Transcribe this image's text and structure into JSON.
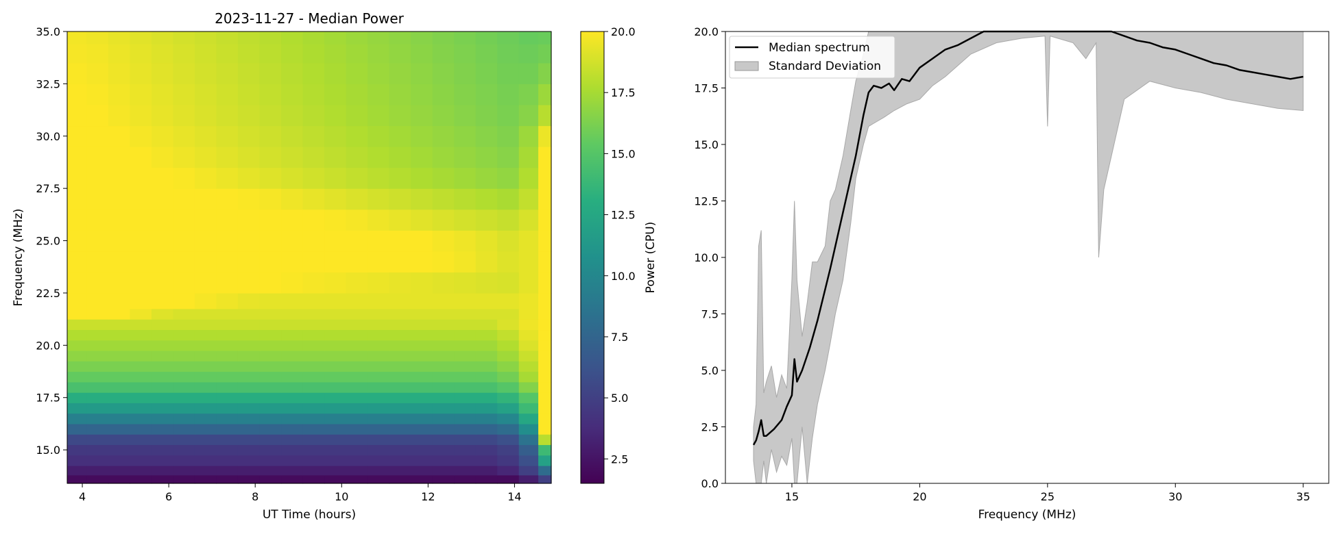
{
  "chart_data": [
    {
      "type": "heatmap",
      "title": "2023-11-27 - Median Power",
      "xlabel": "UT Time (hours)",
      "ylabel": "Frequency (MHz)",
      "xlim": [
        3.65,
        14.85
      ],
      "ylim": [
        13.4,
        35.0
      ],
      "xticks": [
        4,
        6,
        8,
        10,
        12,
        14
      ],
      "xtick_labels": [
        "4",
        "6",
        "8",
        "10",
        "12",
        "14"
      ],
      "yticks": [
        15.0,
        17.5,
        20.0,
        22.5,
        25.0,
        27.5,
        30.0,
        32.5,
        35.0
      ],
      "ytick_labels": [
        "15.0",
        "17.5",
        "20.0",
        "22.5",
        "25.0",
        "27.5",
        "30.0",
        "32.5",
        "35.0"
      ],
      "colormap": "viridis",
      "grid": false,
      "colorbar": {
        "label": "Power (CPU)",
        "vmin": 1.5,
        "vmax": 20.0,
        "ticks": [
          2.5,
          5.0,
          7.5,
          10.0,
          12.5,
          15.0,
          17.5,
          20.0
        ],
        "tick_labels": [
          "2.5",
          "5.0",
          "7.5",
          "10.0",
          "12.5",
          "15.0",
          "17.5",
          "20.0"
        ]
      },
      "time_columns": [
        3.85,
        4.35,
        4.85,
        5.35,
        5.85,
        6.35,
        6.85,
        7.35,
        7.85,
        8.35,
        8.85,
        9.35,
        9.85,
        10.35,
        10.85,
        11.35,
        11.85,
        12.35,
        12.85,
        13.35,
        13.85,
        14.35,
        14.75
      ],
      "freq_rows": [
        13.6,
        14.0,
        14.5,
        15.0,
        15.5,
        16.0,
        16.5,
        17.0,
        17.5,
        18.0,
        18.5,
        19.0,
        19.5,
        20.0,
        20.5,
        21.0,
        21.5,
        22.0,
        23.0,
        24.0,
        25.0,
        26.0,
        27.0,
        28.0,
        29.0,
        30.0,
        31.0,
        32.0,
        33.0,
        34.0,
        34.8
      ],
      "values": [
        [
          2.0,
          2.0,
          2.0,
          2.0,
          2.0,
          2.0,
          2.0,
          2.0,
          2.0,
          2.0,
          2.0,
          2.0,
          2.0,
          2.0,
          2.0,
          2.0,
          2.0,
          2.0,
          2.0,
          2.0,
          2.0,
          3.0,
          5.0
        ],
        [
          3.0,
          3.0,
          3.0,
          3.0,
          3.0,
          3.0,
          3.0,
          3.0,
          3.0,
          3.0,
          3.0,
          3.0,
          3.0,
          3.0,
          3.0,
          3.0,
          3.0,
          3.0,
          3.0,
          3.0,
          3.5,
          5.0,
          8.0
        ],
        [
          4.0,
          4.0,
          4.0,
          4.0,
          4.0,
          4.0,
          4.0,
          4.0,
          4.0,
          4.0,
          4.0,
          4.0,
          4.0,
          4.0,
          4.0,
          4.0,
          4.0,
          4.0,
          4.0,
          4.0,
          4.5,
          6.0,
          12.0
        ],
        [
          4.5,
          4.5,
          4.5,
          4.5,
          4.5,
          4.5,
          4.5,
          4.5,
          4.5,
          4.5,
          4.5,
          4.5,
          4.5,
          4.5,
          4.5,
          4.5,
          4.5,
          4.5,
          4.5,
          4.5,
          5.0,
          7.0,
          14.0
        ],
        [
          5.5,
          5.5,
          5.5,
          5.5,
          5.5,
          5.5,
          5.5,
          5.5,
          5.5,
          5.5,
          5.5,
          5.5,
          5.5,
          5.5,
          5.5,
          5.5,
          5.5,
          5.5,
          5.5,
          5.5,
          6.0,
          8.5,
          18.0
        ],
        [
          7.5,
          7.5,
          7.5,
          7.5,
          7.5,
          7.5,
          7.5,
          7.5,
          7.5,
          7.5,
          7.5,
          7.5,
          7.5,
          7.5,
          7.5,
          7.5,
          7.5,
          7.5,
          7.5,
          7.5,
          8.0,
          10.5,
          20.0
        ],
        [
          9.5,
          9.5,
          9.5,
          9.5,
          9.5,
          9.5,
          9.5,
          9.5,
          9.5,
          9.5,
          9.5,
          9.5,
          9.5,
          9.5,
          9.5,
          9.5,
          9.5,
          9.5,
          9.5,
          9.5,
          10.0,
          12.5,
          20.0
        ],
        [
          11.5,
          11.5,
          11.5,
          11.5,
          11.5,
          11.5,
          11.5,
          11.5,
          11.5,
          11.5,
          11.5,
          11.5,
          11.5,
          11.5,
          11.5,
          11.5,
          11.5,
          11.5,
          11.5,
          11.5,
          12.0,
          14.0,
          20.0
        ],
        [
          13.0,
          13.0,
          13.0,
          13.0,
          13.0,
          13.0,
          13.0,
          13.0,
          13.0,
          13.0,
          13.0,
          13.0,
          13.0,
          13.0,
          13.0,
          13.0,
          13.0,
          13.0,
          13.0,
          13.0,
          13.5,
          15.0,
          20.0
        ],
        [
          14.5,
          14.5,
          14.5,
          14.5,
          14.5,
          14.5,
          14.5,
          14.5,
          14.5,
          14.5,
          14.5,
          14.5,
          14.5,
          14.5,
          14.5,
          14.5,
          14.5,
          14.5,
          14.5,
          14.5,
          15.0,
          16.5,
          20.0
        ],
        [
          15.5,
          15.5,
          15.5,
          15.5,
          15.5,
          15.5,
          15.5,
          15.5,
          15.5,
          15.5,
          15.5,
          15.5,
          15.5,
          15.5,
          15.5,
          15.5,
          15.5,
          15.5,
          15.5,
          15.5,
          16.0,
          17.5,
          20.0
        ],
        [
          16.2,
          16.2,
          16.2,
          16.2,
          16.2,
          16.2,
          16.2,
          16.2,
          16.2,
          16.2,
          16.2,
          16.2,
          16.2,
          16.2,
          16.2,
          16.2,
          16.2,
          16.2,
          16.2,
          16.2,
          16.7,
          18.0,
          20.0
        ],
        [
          16.8,
          16.8,
          16.8,
          16.8,
          16.8,
          16.8,
          16.8,
          16.8,
          16.8,
          16.8,
          16.8,
          16.8,
          16.8,
          16.8,
          16.8,
          16.8,
          16.8,
          16.8,
          16.8,
          16.8,
          17.3,
          18.5,
          20.0
        ],
        [
          17.3,
          17.3,
          17.3,
          17.3,
          17.3,
          17.3,
          17.3,
          17.3,
          17.3,
          17.3,
          17.3,
          17.3,
          17.3,
          17.3,
          17.3,
          17.3,
          17.3,
          17.3,
          17.3,
          17.3,
          17.8,
          19.0,
          20.0
        ],
        [
          17.8,
          17.8,
          17.8,
          17.8,
          17.8,
          17.8,
          17.8,
          17.8,
          17.8,
          17.8,
          17.8,
          17.8,
          17.8,
          17.8,
          17.8,
          17.8,
          17.8,
          17.8,
          17.8,
          17.8,
          18.3,
          19.3,
          20.0
        ],
        [
          18.5,
          18.5,
          18.5,
          18.5,
          18.5,
          18.5,
          18.5,
          18.5,
          18.5,
          18.5,
          18.5,
          18.5,
          18.5,
          18.5,
          18.5,
          18.5,
          18.5,
          18.5,
          18.5,
          18.5,
          19.0,
          19.6,
          20.0
        ],
        [
          20.0,
          20.0,
          20.0,
          19.6,
          19.1,
          18.9,
          18.9,
          18.9,
          18.9,
          18.9,
          18.9,
          18.9,
          18.9,
          18.9,
          18.9,
          18.9,
          18.9,
          18.9,
          18.9,
          18.9,
          18.9,
          19.5,
          20.0
        ],
        [
          20.0,
          20.0,
          20.0,
          20.0,
          20.0,
          20.0,
          19.8,
          19.6,
          19.4,
          19.3,
          19.3,
          19.3,
          19.3,
          19.3,
          19.3,
          19.3,
          19.3,
          19.3,
          19.3,
          19.3,
          19.3,
          19.5,
          20.0
        ],
        [
          20.0,
          20.0,
          20.0,
          20.0,
          20.0,
          20.0,
          20.0,
          20.0,
          20.0,
          20.0,
          19.9,
          19.8,
          19.7,
          19.6,
          19.5,
          19.4,
          19.3,
          19.2,
          19.1,
          19.0,
          18.9,
          19.3,
          20.0
        ],
        [
          20.0,
          20.0,
          20.0,
          20.0,
          20.0,
          20.0,
          20.0,
          20.0,
          20.0,
          20.0,
          20.0,
          20.0,
          20.0,
          20.0,
          20.0,
          20.0,
          20.0,
          19.9,
          19.7,
          19.4,
          19.1,
          19.3,
          20.0
        ],
        [
          20.0,
          20.0,
          20.0,
          20.0,
          20.0,
          20.0,
          20.0,
          20.0,
          20.0,
          20.0,
          20.0,
          20.0,
          20.0,
          20.0,
          20.0,
          20.0,
          20.0,
          19.8,
          19.6,
          19.3,
          19.0,
          19.3,
          20.0
        ],
        [
          20.0,
          20.0,
          20.0,
          20.0,
          20.0,
          20.0,
          20.0,
          20.0,
          20.0,
          20.0,
          20.0,
          20.0,
          19.9,
          19.8,
          19.6,
          19.4,
          19.2,
          19.0,
          18.8,
          18.6,
          18.4,
          18.9,
          20.0
        ],
        [
          20.0,
          20.0,
          20.0,
          20.0,
          20.0,
          20.0,
          20.0,
          20.0,
          19.9,
          19.8,
          19.6,
          19.4,
          19.2,
          19.0,
          18.8,
          18.6,
          18.4,
          18.2,
          18.0,
          17.8,
          17.6,
          18.3,
          20.0
        ],
        [
          20.0,
          20.0,
          20.0,
          20.0,
          20.0,
          19.9,
          19.7,
          19.5,
          19.3,
          19.1,
          18.9,
          18.7,
          18.5,
          18.3,
          18.1,
          17.9,
          17.7,
          17.5,
          17.3,
          17.1,
          16.9,
          17.8,
          20.0
        ],
        [
          20.0,
          20.0,
          20.0,
          20.0,
          19.8,
          19.6,
          19.4,
          19.2,
          19.0,
          18.8,
          18.6,
          18.4,
          18.2,
          18.0,
          17.8,
          17.6,
          17.4,
          17.2,
          17.0,
          16.8,
          16.6,
          17.5,
          20.0
        ],
        [
          20.0,
          20.0,
          20.0,
          19.8,
          19.6,
          19.4,
          19.2,
          19.0,
          18.8,
          18.6,
          18.4,
          18.2,
          18.0,
          17.8,
          17.6,
          17.4,
          17.2,
          17.0,
          16.8,
          16.6,
          16.4,
          17.2,
          19.5
        ],
        [
          20.0,
          20.0,
          19.8,
          19.6,
          19.4,
          19.2,
          19.0,
          18.8,
          18.6,
          18.4,
          18.2,
          18.0,
          17.8,
          17.6,
          17.4,
          17.2,
          17.0,
          16.8,
          16.6,
          16.4,
          16.2,
          16.6,
          18.0
        ],
        [
          20.0,
          19.9,
          19.7,
          19.5,
          19.3,
          19.1,
          18.9,
          18.7,
          18.5,
          18.3,
          18.1,
          17.9,
          17.7,
          17.5,
          17.3,
          17.1,
          16.9,
          16.7,
          16.5,
          16.3,
          16.1,
          16.3,
          17.2
        ],
        [
          19.9,
          19.8,
          19.6,
          19.4,
          19.2,
          19.0,
          18.8,
          18.6,
          18.4,
          18.2,
          18.0,
          17.8,
          17.6,
          17.4,
          17.2,
          17.0,
          16.8,
          16.6,
          16.4,
          16.2,
          16.0,
          16.0,
          16.5
        ],
        [
          19.8,
          19.7,
          19.5,
          19.3,
          19.1,
          18.9,
          18.7,
          18.5,
          18.3,
          18.1,
          17.9,
          17.7,
          17.5,
          17.3,
          17.1,
          16.9,
          16.7,
          16.5,
          16.3,
          16.1,
          15.9,
          15.8,
          16.0
        ],
        [
          19.7,
          19.6,
          19.4,
          19.2,
          19.0,
          18.8,
          18.6,
          18.4,
          18.2,
          18.0,
          17.8,
          17.6,
          17.4,
          17.2,
          17.0,
          16.8,
          16.6,
          16.4,
          16.2,
          16.0,
          15.8,
          15.6,
          15.7
        ]
      ]
    },
    {
      "type": "line",
      "xlabel": "Frequency (MHz)",
      "ylabel": "",
      "xlim": [
        12.4,
        36.0
      ],
      "ylim": [
        0.0,
        20.0
      ],
      "xticks": [
        15,
        20,
        25,
        30,
        35
      ],
      "xtick_labels": [
        "15",
        "20",
        "25",
        "30",
        "35"
      ],
      "yticks": [
        0.0,
        2.5,
        5.0,
        7.5,
        10.0,
        12.5,
        15.0,
        17.5,
        20.0
      ],
      "ytick_labels": [
        "0.0",
        "2.5",
        "5.0",
        "7.5",
        "10.0",
        "12.5",
        "15.0",
        "17.5",
        "20.0"
      ],
      "grid": false,
      "legend_position": "top-left",
      "series": [
        {
          "name": "Median spectrum",
          "color": "#000000",
          "x": [
            13.5,
            13.6,
            13.7,
            13.8,
            13.9,
            14.0,
            14.3,
            14.6,
            14.8,
            15.0,
            15.1,
            15.2,
            15.4,
            15.7,
            16.0,
            16.5,
            17.0,
            17.5,
            17.8,
            18.0,
            18.2,
            18.5,
            18.8,
            19.0,
            19.3,
            19.6,
            20.0,
            20.5,
            21.0,
            21.5,
            22.0,
            22.5,
            27.5,
            28.0,
            28.5,
            29.0,
            29.5,
            30.0,
            30.5,
            31.0,
            31.5,
            32.0,
            32.5,
            33.0,
            33.5,
            34.0,
            34.5,
            35.0
          ],
          "y": [
            1.7,
            1.9,
            2.3,
            2.8,
            2.1,
            2.1,
            2.4,
            2.8,
            3.4,
            3.9,
            5.5,
            4.5,
            5.0,
            6.0,
            7.2,
            9.5,
            12.0,
            14.5,
            16.3,
            17.3,
            17.6,
            17.5,
            17.7,
            17.4,
            17.9,
            17.8,
            18.4,
            18.8,
            19.2,
            19.4,
            19.7,
            20.0,
            20.0,
            19.8,
            19.6,
            19.5,
            19.3,
            19.2,
            19.0,
            18.8,
            18.6,
            18.5,
            18.3,
            18.2,
            18.1,
            18.0,
            17.9,
            18.0
          ]
        },
        {
          "name": "Standard Deviation",
          "color": "#c8c8c8",
          "x": [
            13.5,
            13.6,
            13.7,
            13.8,
            13.9,
            14.0,
            14.2,
            14.4,
            14.6,
            14.8,
            15.0,
            15.1,
            15.2,
            15.4,
            15.6,
            15.8,
            16.0,
            16.3,
            16.5,
            16.7,
            17.0,
            17.3,
            17.5,
            17.8,
            18.0,
            18.3,
            18.6,
            19.0,
            19.5,
            20.0,
            20.5,
            21.0,
            21.5,
            22.0,
            23.0,
            24.0,
            24.9,
            25.0,
            25.1,
            26.0,
            26.5,
            26.9,
            27.0,
            27.2,
            27.4,
            27.6,
            28.0,
            29.0,
            30.0,
            31.0,
            32.0,
            33.0,
            34.0,
            35.0
          ],
          "upper": [
            2.5,
            3.5,
            10.5,
            11.2,
            4.0,
            4.5,
            5.2,
            3.8,
            4.8,
            4.2,
            9.0,
            12.5,
            9.0,
            6.5,
            8.0,
            9.8,
            9.8,
            10.5,
            12.5,
            13.0,
            14.5,
            16.5,
            17.8,
            19.0,
            20.0,
            20.0,
            20.0,
            20.0,
            20.0,
            20.0,
            20.0,
            20.0,
            20.0,
            20.0,
            20.0,
            20.0,
            20.0,
            20.0,
            20.0,
            20.0,
            20.0,
            20.0,
            20.0,
            20.0,
            20.0,
            20.0,
            20.0,
            20.0,
            20.0,
            20.0,
            20.0,
            20.0,
            20.0,
            20.0
          ],
          "lower": [
            1.0,
            0.0,
            0.0,
            0.0,
            1.0,
            0.0,
            1.5,
            0.5,
            1.2,
            0.8,
            2.0,
            0.0,
            0.0,
            2.5,
            0.0,
            2.0,
            3.5,
            5.0,
            6.2,
            7.5,
            9.0,
            11.5,
            13.5,
            15.0,
            15.8,
            16.0,
            16.2,
            16.5,
            16.8,
            17.0,
            17.6,
            18.0,
            18.5,
            19.0,
            19.5,
            19.7,
            19.8,
            15.8,
            19.8,
            19.5,
            18.8,
            19.5,
            10.0,
            13.0,
            14.0,
            15.0,
            17.0,
            17.8,
            17.5,
            17.3,
            17.0,
            16.8,
            16.6,
            16.5
          ]
        }
      ]
    }
  ]
}
